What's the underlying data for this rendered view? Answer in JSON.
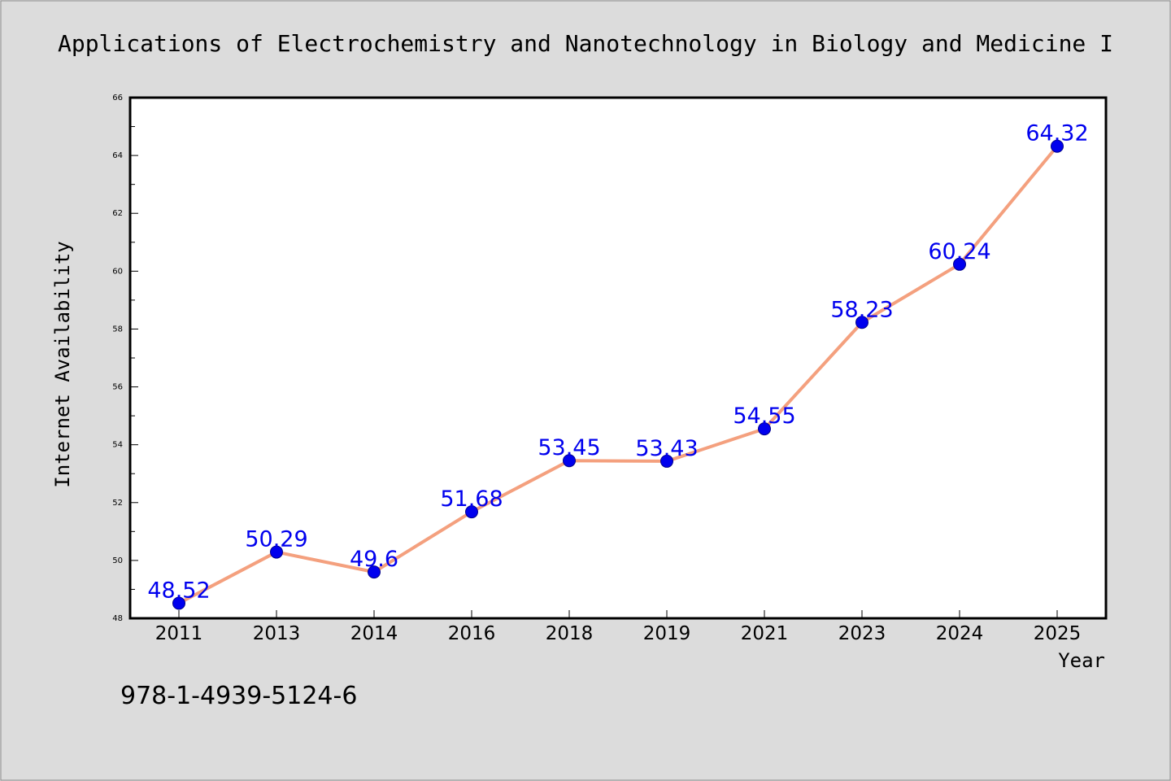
{
  "chart_data": {
    "type": "line",
    "title": "Applications of Electrochemistry and Nanotechnology in Biology and Medicine I",
    "xlabel": "Year",
    "ylabel": "Internet Availability",
    "categories": [
      "2011",
      "2013",
      "2014",
      "2016",
      "2018",
      "2019",
      "2021",
      "2023",
      "2024",
      "2025"
    ],
    "values": [
      48.52,
      50.29,
      49.6,
      51.68,
      53.45,
      53.43,
      54.55,
      58.23,
      60.24,
      64.32
    ],
    "data_labels": [
      "48.52",
      "50.29",
      "49.6",
      "51.68",
      "53.45",
      "53.43",
      "54.55",
      "58.23",
      "60.24",
      "64.32"
    ],
    "ylim": [
      48,
      66
    ],
    "yticks": [
      "48",
      "50",
      "52",
      "54",
      "56",
      "58",
      "60",
      "62",
      "64",
      "66"
    ],
    "grid": false,
    "legend": "none",
    "colors": {
      "line": "#f4a07e",
      "marker": "#0000ee",
      "label": "#0000ee",
      "background": "#dcdcdc",
      "plot_background": "#ffffff"
    }
  },
  "footer": {
    "isbn": "978-1-4939-5124-6"
  }
}
